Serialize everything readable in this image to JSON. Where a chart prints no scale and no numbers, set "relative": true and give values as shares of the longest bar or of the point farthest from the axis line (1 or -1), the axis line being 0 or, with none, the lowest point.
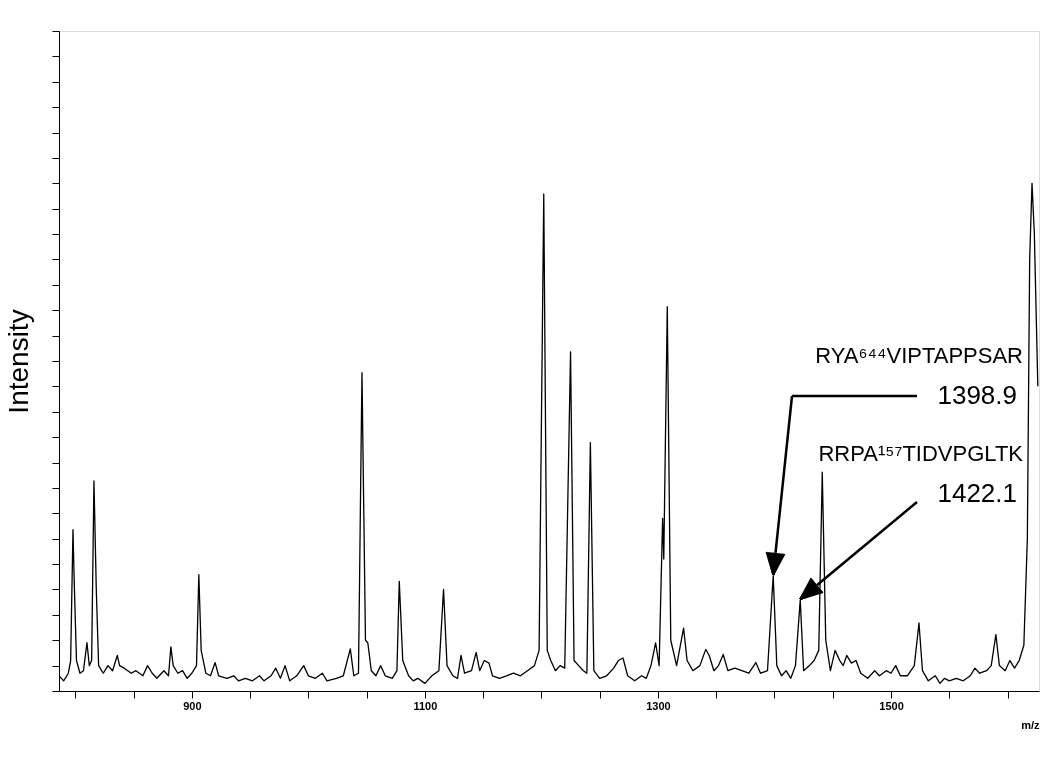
{
  "chart_data": {
    "type": "line",
    "relative": true,
    "xlabel": "m/z",
    "ylabel": "Intensity",
    "color": "#000000",
    "xlim": [
      786,
      1627
    ],
    "xticks": [
      {
        "value": 800,
        "label": null
      },
      {
        "value": 850,
        "label": null
      },
      900,
      {
        "value": 950,
        "label": null
      },
      {
        "value": 1000,
        "label": null
      },
      {
        "value": 1050,
        "label": null
      },
      1100,
      {
        "value": 1150,
        "label": null
      },
      {
        "value": 1200,
        "label": null
      },
      {
        "value": 1250,
        "label": null
      },
      1300,
      {
        "value": 1350,
        "label": null
      },
      {
        "value": 1400,
        "label": null
      },
      {
        "value": 1450,
        "label": null
      },
      1500,
      {
        "value": 1550,
        "label": null
      },
      {
        "value": 1600,
        "label": null
      }
    ],
    "grid": false,
    "annotations": [
      "RYA⁶⁴⁴VIPTAPPSAR",
      "1398.9",
      "RRPA¹⁵⁷TIDVPGLTK",
      "1422.1"
    ],
    "x": [
      786,
      790,
      794,
      796,
      798,
      799,
      801,
      804,
      807,
      810,
      812,
      814,
      816,
      818,
      820,
      824,
      828,
      832,
      836,
      838,
      842,
      848,
      852,
      858,
      862,
      866,
      870,
      876,
      880,
      882,
      884,
      888,
      892,
      896,
      900,
      904,
      906,
      908,
      912,
      916,
      920,
      923,
      930,
      936,
      940,
      946,
      952,
      958,
      962,
      968,
      972,
      976,
      980,
      984,
      990,
      996,
      1000,
      1006,
      1012,
      1016,
      1024,
      1030,
      1036,
      1039,
      1043,
      1046,
      1049,
      1051,
      1054,
      1058,
      1062,
      1066,
      1072,
      1076,
      1078,
      1081,
      1086,
      1090,
      1094,
      1100,
      1106,
      1112,
      1116,
      1119,
      1124,
      1128,
      1131,
      1134,
      1140,
      1144,
      1147,
      1151,
      1155,
      1158,
      1164,
      1170,
      1176,
      1182,
      1188,
      1194,
      1198,
      1202,
      1205,
      1208,
      1212,
      1216,
      1220,
      1225,
      1228,
      1232,
      1236,
      1239,
      1242,
      1245,
      1250,
      1256,
      1262,
      1266,
      1270,
      1274,
      1280,
      1286,
      1290,
      1294,
      1298,
      1301,
      1304,
      1305,
      1308,
      1311,
      1316,
      1322,
      1325,
      1330,
      1336,
      1341,
      1344,
      1348,
      1352,
      1356,
      1360,
      1366,
      1372,
      1378,
      1384,
      1388,
      1394,
      1398.9,
      1402,
      1406,
      1410,
      1414,
      1418,
      1422.1,
      1425,
      1430,
      1434,
      1438,
      1441,
      1444,
      1448,
      1452,
      1456,
      1459,
      1462,
      1466,
      1470,
      1474,
      1480,
      1486,
      1490,
      1496,
      1500,
      1504,
      1508,
      1514,
      1520,
      1524,
      1527,
      1532,
      1538,
      1542,
      1546,
      1550,
      1556,
      1562,
      1568,
      1572,
      1576,
      1582,
      1586,
      1590,
      1593,
      1598,
      1602,
      1606,
      1610,
      1614,
      1617,
      1619,
      1621,
      1623,
      1626
    ],
    "values": [
      0.03,
      0.02,
      0.035,
      0.06,
      0.318,
      0.22,
      0.06,
      0.035,
      0.04,
      0.095,
      0.05,
      0.06,
      0.414,
      0.2,
      0.05,
      0.035,
      0.05,
      0.04,
      0.07,
      0.05,
      0.045,
      0.035,
      0.04,
      0.03,
      0.05,
      0.035,
      0.025,
      0.04,
      0.03,
      0.087,
      0.05,
      0.035,
      0.04,
      0.025,
      0.035,
      0.05,
      0.229,
      0.08,
      0.035,
      0.03,
      0.056,
      0.03,
      0.025,
      0.03,
      0.02,
      0.025,
      0.02,
      0.03,
      0.02,
      0.03,
      0.045,
      0.025,
      0.05,
      0.02,
      0.03,
      0.05,
      0.03,
      0.025,
      0.035,
      0.02,
      0.025,
      0.03,
      0.083,
      0.03,
      0.035,
      0.627,
      0.1,
      0.095,
      0.04,
      0.03,
      0.05,
      0.03,
      0.025,
      0.04,
      0.216,
      0.06,
      0.03,
      0.02,
      0.025,
      0.015,
      0.03,
      0.04,
      0.2,
      0.05,
      0.03,
      0.025,
      0.07,
      0.035,
      0.04,
      0.076,
      0.04,
      0.06,
      0.055,
      0.03,
      0.025,
      0.03,
      0.035,
      0.03,
      0.04,
      0.05,
      0.08,
      0.979,
      0.08,
      0.06,
      0.04,
      0.05,
      0.045,
      0.668,
      0.06,
      0.05,
      0.04,
      0.035,
      0.489,
      0.04,
      0.025,
      0.03,
      0.045,
      0.06,
      0.065,
      0.03,
      0.02,
      0.03,
      0.025,
      0.05,
      0.095,
      0.05,
      0.34,
      0.26,
      0.757,
      0.1,
      0.05,
      0.124,
      0.06,
      0.04,
      0.05,
      0.082,
      0.07,
      0.04,
      0.05,
      0.072,
      0.04,
      0.045,
      0.04,
      0.035,
      0.056,
      0.035,
      0.04,
      0.227,
      0.05,
      0.03,
      0.04,
      0.025,
      0.05,
      0.179,
      0.04,
      0.05,
      0.06,
      0.08,
      0.431,
      0.1,
      0.04,
      0.08,
      0.06,
      0.05,
      0.07,
      0.055,
      0.06,
      0.035,
      0.025,
      0.04,
      0.03,
      0.04,
      0.035,
      0.05,
      0.03,
      0.03,
      0.05,
      0.134,
      0.04,
      0.02,
      0.03,
      0.015,
      0.025,
      0.02,
      0.025,
      0.02,
      0.03,
      0.045,
      0.035,
      0.04,
      0.05,
      0.111,
      0.05,
      0.04,
      0.06,
      0.045,
      0.06,
      0.09,
      0.3,
      0.85,
      1.0,
      0.9,
      0.6
    ]
  }
}
